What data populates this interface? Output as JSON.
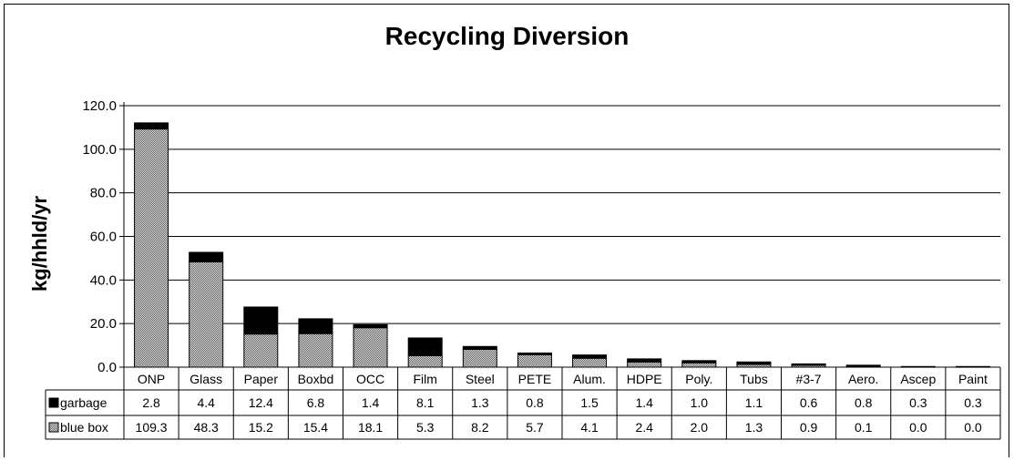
{
  "chart_data": {
    "type": "bar",
    "stacked": true,
    "title": "Recycling Diversion",
    "ylabel": "kg/hhld/yr",
    "xlabel": "",
    "ylim": [
      0,
      120
    ],
    "yticks": [
      "0.0",
      "20.0",
      "40.0",
      "60.0",
      "80.0",
      "100.0",
      "120.0"
    ],
    "grid": true,
    "legend_placement": "data-table-left",
    "categories": [
      "ONP",
      "Glass",
      "Paper",
      "Boxbd",
      "OCC",
      "Film",
      "Steel",
      "PETE",
      "Alum.",
      "HDPE",
      "Poly.",
      "Tubs",
      "#3-7",
      "Aero.",
      "Ascep",
      "Paint"
    ],
    "series": [
      {
        "name": "blue box",
        "color": "#9a9a9a",
        "values": [
          109.3,
          48.3,
          15.2,
          15.4,
          18.1,
          5.3,
          8.2,
          5.7,
          4.1,
          2.4,
          2.0,
          1.3,
          0.9,
          0.1,
          0.0,
          0.0
        ],
        "labels": [
          "109.3",
          "48.3",
          "15.2",
          "15.4",
          "18.1",
          "5.3",
          "8.2",
          "5.7",
          "4.1",
          "2.4",
          "2.0",
          "1.3",
          "0.9",
          "0.1",
          "0.0",
          "0.0"
        ]
      },
      {
        "name": "garbage",
        "color": "#000000",
        "values": [
          2.8,
          4.4,
          12.4,
          6.8,
          1.4,
          8.1,
          1.3,
          0.8,
          1.5,
          1.4,
          1.0,
          1.1,
          0.6,
          0.8,
          0.3,
          0.3
        ],
        "labels": [
          "2.8",
          "4.4",
          "12.4",
          "6.8",
          "1.4",
          "8.1",
          "1.3",
          "0.8",
          "1.5",
          "1.4",
          "1.0",
          "1.1",
          "0.6",
          "0.8",
          "0.3",
          "0.3"
        ]
      }
    ],
    "table_row_order": [
      "garbage",
      "blue box"
    ]
  }
}
